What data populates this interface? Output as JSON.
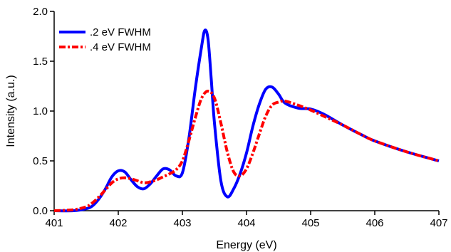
{
  "chart_data": {
    "type": "line",
    "xlabel": "Energy (eV)",
    "ylabel": "Intensity (a.u.)",
    "xlim": [
      401,
      407
    ],
    "ylim": [
      0,
      2.0
    ],
    "xticks": [
      401,
      402,
      403,
      404,
      405,
      406,
      407
    ],
    "xtick_labels": [
      "401",
      "402",
      "403",
      "404",
      "405",
      "406",
      "407"
    ],
    "yticks": [
      0,
      0.5,
      1.0,
      1.5,
      2.0
    ],
    "ytick_labels": [
      "0.0",
      "0.5",
      "1.0",
      "1.5",
      "2.0"
    ],
    "grid": false,
    "legend_position": "top-left",
    "series": [
      {
        "name": ".2 eV FWHM",
        "color": "#0000ff",
        "style": "solid",
        "x": [
          401.0,
          401.3,
          401.5,
          401.6,
          401.7,
          401.8,
          401.9,
          402.0,
          402.1,
          402.2,
          402.3,
          402.4,
          402.5,
          402.6,
          402.7,
          402.8,
          402.9,
          403.0,
          403.1,
          403.2,
          403.3,
          403.35,
          403.4,
          403.45,
          403.5,
          403.6,
          403.7,
          403.8,
          403.9,
          404.0,
          404.1,
          404.2,
          404.3,
          404.4,
          404.5,
          404.6,
          404.8,
          405.0,
          405.2,
          405.5,
          405.8,
          406.0,
          406.5,
          407.0
        ],
        "y": [
          0.0,
          0.0,
          0.02,
          0.05,
          0.12,
          0.22,
          0.34,
          0.4,
          0.39,
          0.31,
          0.24,
          0.22,
          0.27,
          0.35,
          0.42,
          0.41,
          0.35,
          0.38,
          0.72,
          1.22,
          1.65,
          1.81,
          1.72,
          1.32,
          0.88,
          0.3,
          0.14,
          0.22,
          0.37,
          0.58,
          0.85,
          1.07,
          1.22,
          1.24,
          1.17,
          1.08,
          1.03,
          1.02,
          0.97,
          0.86,
          0.76,
          0.7,
          0.59,
          0.5
        ]
      },
      {
        "name": ".4 eV FWHM",
        "color": "#ff0000",
        "style": "dash-dot",
        "x": [
          401.0,
          401.3,
          401.5,
          401.6,
          401.7,
          401.8,
          401.9,
          402.0,
          402.1,
          402.2,
          402.3,
          402.4,
          402.5,
          402.6,
          402.7,
          402.8,
          402.9,
          403.0,
          403.1,
          403.2,
          403.3,
          403.4,
          403.5,
          403.6,
          403.7,
          403.8,
          403.9,
          404.0,
          404.1,
          404.2,
          404.3,
          404.4,
          404.5,
          404.6,
          404.8,
          405.0,
          405.2,
          405.5,
          405.8,
          406.0,
          406.5,
          407.0
        ],
        "y": [
          0.0,
          0.01,
          0.04,
          0.08,
          0.14,
          0.21,
          0.28,
          0.32,
          0.33,
          0.32,
          0.3,
          0.28,
          0.29,
          0.31,
          0.34,
          0.37,
          0.41,
          0.5,
          0.7,
          0.93,
          1.13,
          1.2,
          1.13,
          0.88,
          0.59,
          0.39,
          0.35,
          0.42,
          0.58,
          0.77,
          0.95,
          1.06,
          1.09,
          1.1,
          1.06,
          1.01,
          0.95,
          0.86,
          0.76,
          0.7,
          0.59,
          0.5
        ]
      }
    ]
  }
}
